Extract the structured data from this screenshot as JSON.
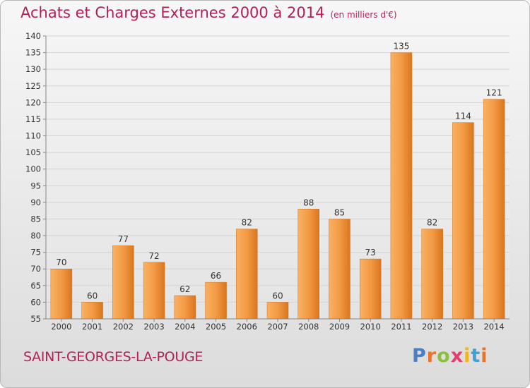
{
  "header": {
    "title": "Achats et Charges Externes 2000 à 2014",
    "unit": "(en milliers d'€)"
  },
  "footer": {
    "commune": "SAINT-GEORGES-LA-POUGE",
    "brand": "Proxiti",
    "brand_letters": [
      {
        "ch": "P",
        "color": "#4a7fc1"
      },
      {
        "ch": "r",
        "color": "#e8732a"
      },
      {
        "ch": "o",
        "color": "#8bbf3f"
      },
      {
        "ch": "x",
        "color": "#e63d6c"
      },
      {
        "ch": "i",
        "color": "#f2b51c"
      },
      {
        "ch": "t",
        "color": "#3f9fd8"
      },
      {
        "ch": "i",
        "color": "#e8732a"
      }
    ]
  },
  "colors": {
    "title": "#b2205a",
    "bar_light": "#f7a34e",
    "bar_dark": "#e07f24",
    "grid": "#d4d4d4"
  },
  "chart_data": {
    "type": "bar",
    "title": "Achats et Charges Externes 2000 à 2014",
    "xlabel": "",
    "ylabel": "",
    "ylim": [
      55,
      140
    ],
    "ytick_step": 5,
    "grid": true,
    "categories": [
      "2000",
      "2001",
      "2002",
      "2003",
      "2004",
      "2005",
      "2006",
      "2007",
      "2008",
      "2009",
      "2010",
      "2011",
      "2012",
      "2013",
      "2014"
    ],
    "values": [
      70,
      60,
      77,
      72,
      62,
      66,
      82,
      60,
      88,
      85,
      73,
      135,
      82,
      114,
      121
    ]
  }
}
